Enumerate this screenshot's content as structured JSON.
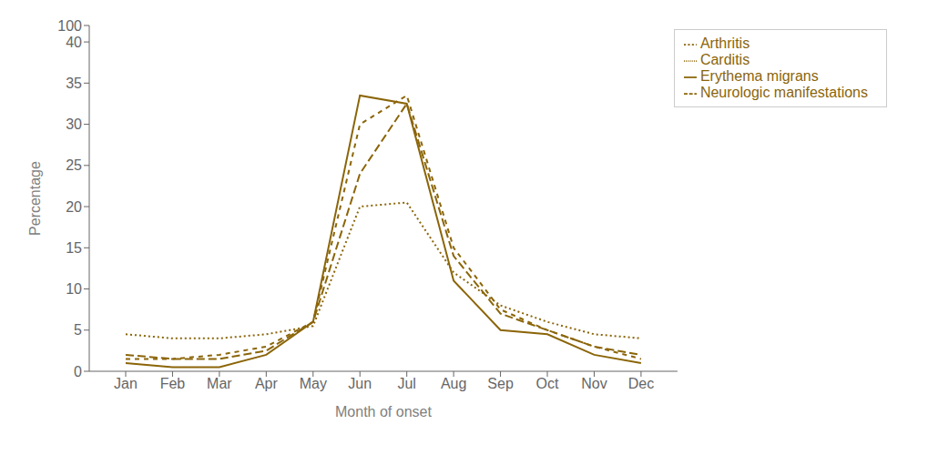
{
  "chart_data": {
    "type": "line",
    "categories": [
      "Jan",
      "Feb",
      "Mar",
      "Apr",
      "May",
      "Jun",
      "Jul",
      "Aug",
      "Sep",
      "Oct",
      "Nov",
      "Dec"
    ],
    "series": [
      {
        "name": "Erythema migrans",
        "color": "#8B6508",
        "line_style": "solid",
        "values": [
          1.0,
          0.5,
          0.5,
          2.0,
          6.0,
          33.5,
          32.5,
          11.0,
          5.0,
          4.5,
          2.0,
          1.0
        ]
      },
      {
        "name": "Neurologic manifestations",
        "color": "#8B6508",
        "line_style": "dashed",
        "values": [
          2.0,
          1.5,
          1.5,
          2.5,
          6.0,
          24.0,
          32.5,
          14.0,
          7.0,
          5.0,
          3.0,
          2.0
        ]
      },
      {
        "name": "Carditis",
        "color": "#8B6508",
        "line_style": "dotted",
        "values": [
          4.5,
          4.0,
          4.0,
          4.5,
          5.5,
          20.0,
          20.5,
          12.0,
          8.0,
          6.0,
          4.5,
          4.0
        ]
      },
      {
        "name": "Arthritis",
        "color": "#8B6508",
        "line_style": "short_dashed",
        "values": [
          1.5,
          1.5,
          2.0,
          3.0,
          6.0,
          30.0,
          33.5,
          15.0,
          7.5,
          5.0,
          3.0,
          1.5
        ]
      }
    ],
    "xlabel": "Month of onset",
    "ylabel": "Percentage",
    "ylim": [
      0,
      42
    ],
    "yticks": [
      0,
      5,
      10,
      15,
      20,
      25,
      30,
      35,
      40
    ],
    "annotations": [
      {
        "text": "100",
        "y": 42
      }
    ],
    "legend": "upper right",
    "grid": false
  }
}
